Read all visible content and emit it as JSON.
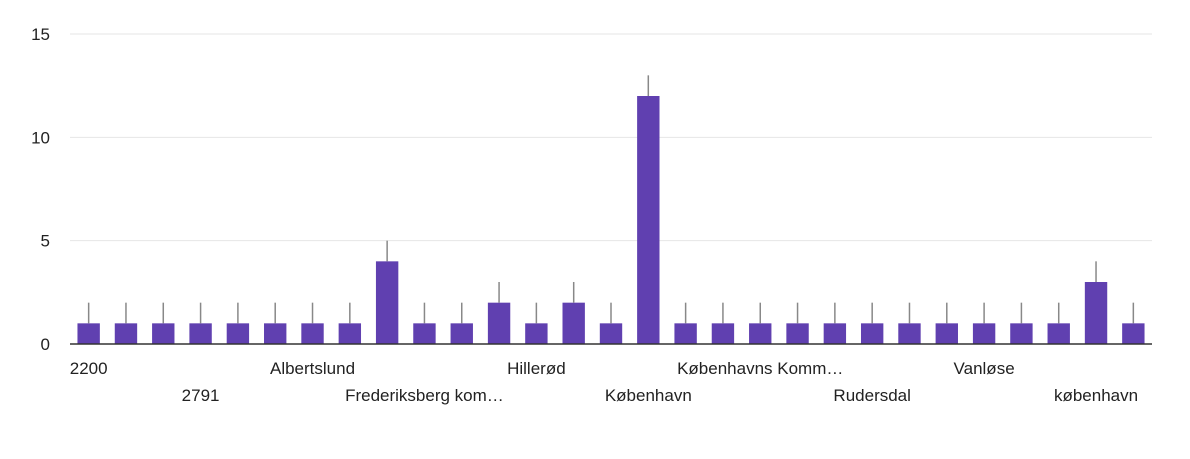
{
  "chart_data": {
    "type": "bar",
    "title": "",
    "xlabel": "",
    "ylabel": "",
    "ylim": [
      0,
      15
    ],
    "yticks": [
      "0",
      "5",
      "10",
      "15"
    ],
    "grid": true,
    "legend": "none",
    "bar_color": "#6040b0",
    "error_color": "#888888",
    "values": [
      1,
      1,
      1,
      1,
      1,
      1,
      1,
      1,
      4,
      1,
      1,
      2,
      1,
      2,
      1,
      12,
      1,
      1,
      1,
      1,
      1,
      1,
      1,
      1,
      1,
      1,
      1,
      3,
      1
    ],
    "error_upper": [
      2,
      2,
      2,
      2,
      2,
      2,
      2,
      2,
      5,
      2,
      2,
      3,
      2,
      3,
      2,
      13,
      2,
      2,
      2,
      2,
      2,
      2,
      2,
      2,
      2,
      2,
      2,
      4,
      2
    ],
    "x_labels": [
      {
        "index": 0,
        "row": 0,
        "text": "2200"
      },
      {
        "index": 3,
        "row": 1,
        "text": "2791"
      },
      {
        "index": 6,
        "row": 0,
        "text": "Albertslund"
      },
      {
        "index": 9,
        "row": 1,
        "text": "Frederiksberg kom…"
      },
      {
        "index": 12,
        "row": 0,
        "text": "Hillerød"
      },
      {
        "index": 15,
        "row": 1,
        "text": "København"
      },
      {
        "index": 18,
        "row": 0,
        "text": "Københavns Komm…"
      },
      {
        "index": 21,
        "row": 1,
        "text": "Rudersdal"
      },
      {
        "index": 24,
        "row": 0,
        "text": "Vanløse"
      },
      {
        "index": 27,
        "row": 1,
        "text": "københavn"
      }
    ]
  }
}
